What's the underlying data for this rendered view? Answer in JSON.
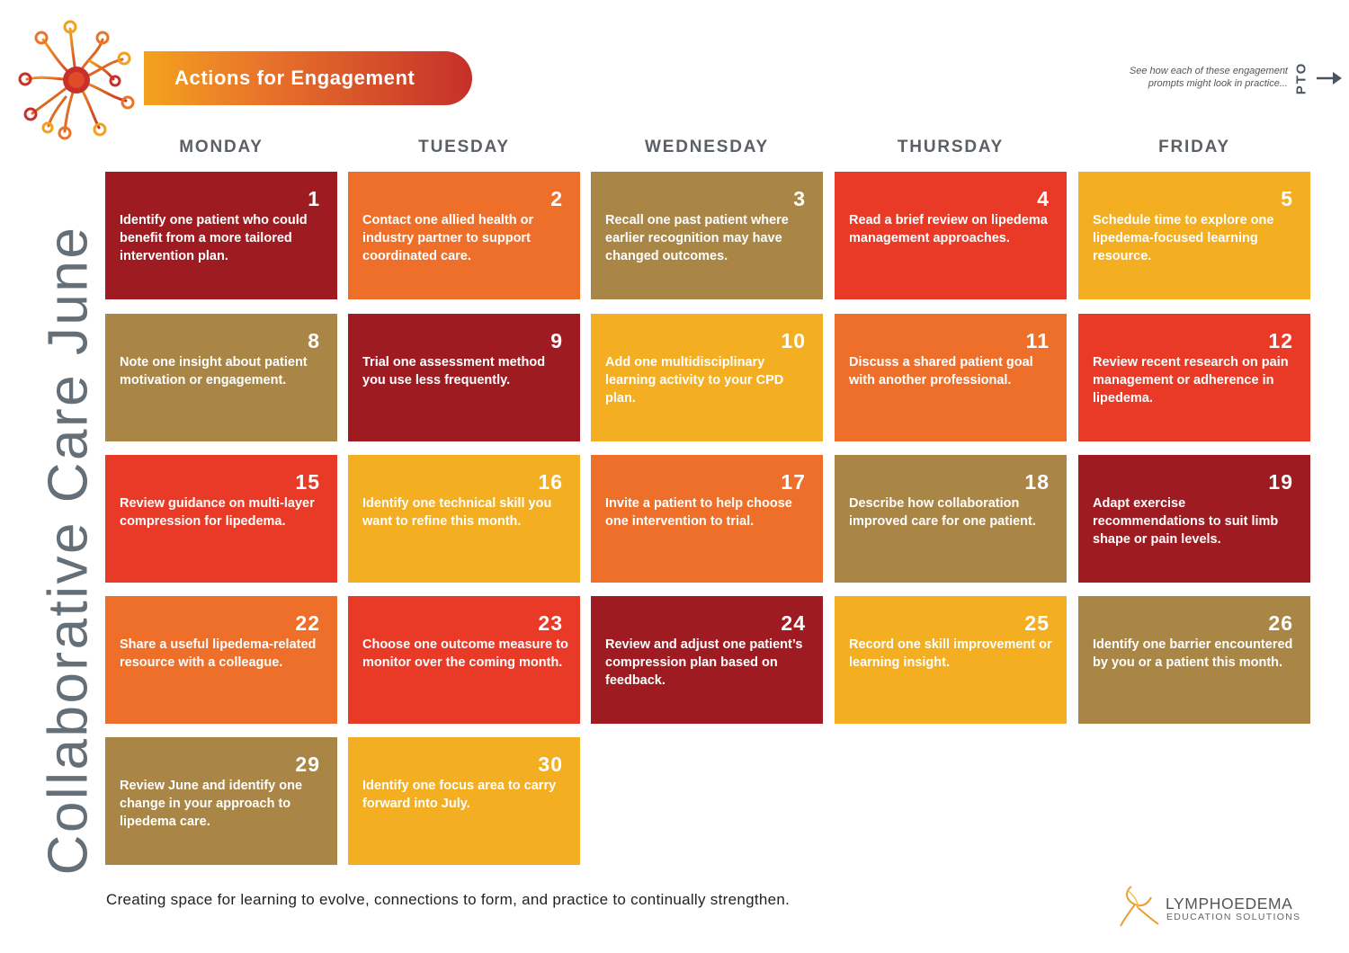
{
  "header": {
    "banner_title": "Actions for Engagement",
    "pto_note_line1": "See how each of these engagement",
    "pto_note_line2": "prompts might look in practice...",
    "pto_label": "PTO"
  },
  "side_title": "Collaborative Care June",
  "days": [
    "MONDAY",
    "TUESDAY",
    "WEDNESDAY",
    "THURSDAY",
    "FRIDAY"
  ],
  "colors": {
    "maroon": "#9e1c21",
    "orange": "#ee6f2a",
    "tan": "#a98546",
    "red": "#e93a27",
    "yellow": "#f3ae22",
    "heading_gray": "#5a6066"
  },
  "weeks": [
    [
      {
        "day": "1",
        "text": "Identify one patient who could benefit from a more tailored intervention plan.",
        "color": "maroon"
      },
      {
        "day": "2",
        "text": "Contact one allied health or industry partner to support coordinated care.",
        "color": "orange"
      },
      {
        "day": "3",
        "text": "Recall one past patient where earlier recognition may have changed outcomes.",
        "color": "tan"
      },
      {
        "day": "4",
        "text": "Read a brief review on lipedema management approaches.",
        "color": "red"
      },
      {
        "day": "5",
        "text": "Schedule time to explore one lipedema-focused learning resource.",
        "color": "yellow"
      }
    ],
    [
      {
        "day": "8",
        "text": "Note one insight about patient motivation or engagement.",
        "color": "tan"
      },
      {
        "day": "9",
        "text": "Trial one assessment method you use less frequently.",
        "color": "maroon"
      },
      {
        "day": "10",
        "text": "Add one multidisciplinary learning activity to your CPD plan.",
        "color": "yellow"
      },
      {
        "day": "11",
        "text": "Discuss a shared patient goal with another professional.",
        "color": "orange"
      },
      {
        "day": "12",
        "text": "Review recent research on pain management or adherence in lipedema.",
        "color": "red"
      }
    ],
    [
      {
        "day": "15",
        "text": "Review guidance on multi-layer compression for lipedema.",
        "color": "red"
      },
      {
        "day": "16",
        "text": "Identify one technical skill you want to refine this month.",
        "color": "yellow"
      },
      {
        "day": "17",
        "text": "Invite a patient to help choose one intervention to trial.",
        "color": "orange"
      },
      {
        "day": "18",
        "text": "Describe how collaboration improved care for one patient.",
        "color": "tan"
      },
      {
        "day": "19",
        "text": "Adapt exercise recommendations to suit limb shape or pain levels.",
        "color": "maroon"
      }
    ],
    [
      {
        "day": "22",
        "text": "Share a useful lipedema-related resource with a colleague.",
        "color": "orange"
      },
      {
        "day": "23",
        "text": "Choose one outcome measure to monitor over the coming month.",
        "color": "red"
      },
      {
        "day": "24",
        "text": "Review and adjust one patient’s compression plan based on feedback.",
        "color": "maroon"
      },
      {
        "day": "25",
        "text": "Record one skill improvement or learning insight.",
        "color": "yellow"
      },
      {
        "day": "26",
        "text": "Identify one barrier encountered by you or a patient this month.",
        "color": "tan"
      }
    ],
    [
      {
        "day": "29",
        "text": "Review June and identify one change in your approach to lipedema care.",
        "color": "tan"
      },
      {
        "day": "30",
        "text": "Identify one focus area to carry forward into July.",
        "color": "yellow"
      }
    ]
  ],
  "footer": {
    "tagline": "Creating space for learning to evolve, connections to form, and practice to continually strengthen.",
    "brand_name": "LYMPHOEDEMA",
    "brand_sub": "EDUCATION SOLUTIONS"
  },
  "icons": {
    "logo": "radial-network-logo-icon",
    "arrow": "arrow-right-icon",
    "brand": "ribbon-figure-icon"
  }
}
